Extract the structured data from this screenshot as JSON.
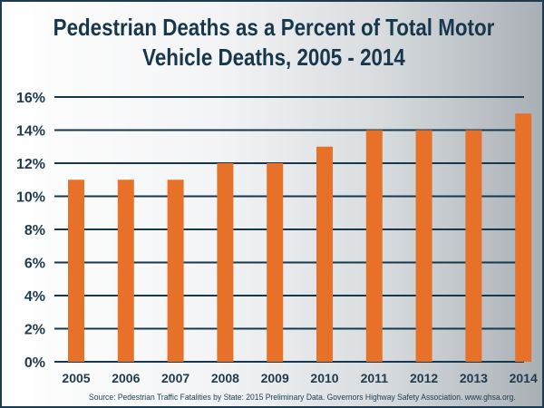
{
  "chart_data": {
    "type": "bar",
    "title_lines": [
      "Pedestrian Deaths as a Percent of Total Motor",
      "Vehicle Deaths, 2005 - 2014"
    ],
    "title": "Pedestrian Deaths as a Percent of Total Motor Vehicle Deaths, 2005 - 2014",
    "xlabel": "",
    "ylabel": "",
    "categories": [
      "2005",
      "2006",
      "2007",
      "2008",
      "2009",
      "2010",
      "2011",
      "2012",
      "2013",
      "2014"
    ],
    "values": [
      11,
      11,
      11,
      12,
      12,
      13,
      14,
      14,
      14,
      15
    ],
    "ylim": [
      0,
      16
    ],
    "yticks": [
      0,
      2,
      4,
      6,
      8,
      10,
      12,
      14,
      16
    ],
    "ytick_labels": [
      "0%",
      "2%",
      "4%",
      "6%",
      "8%",
      "10%",
      "12%",
      "14%",
      "16%"
    ],
    "grid": true,
    "legend": "none",
    "bar_color": "#e8712a",
    "grid_color": "#17374d",
    "text_color": "#1d3a4f",
    "source": "Source: Pedestrian Traffic Fatalities by State: 2015 Preliminary Data. Governors Highway Safety Association. www.ghsa.org."
  }
}
